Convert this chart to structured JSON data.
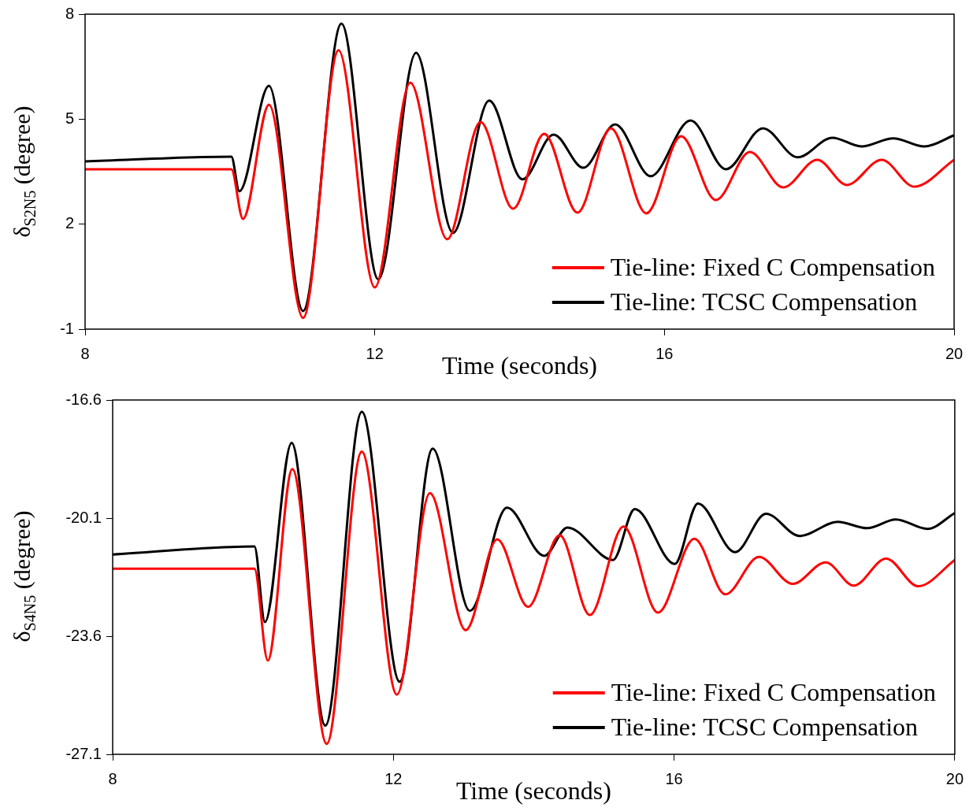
{
  "chart_data": [
    {
      "type": "line",
      "xlabel": "Time (seconds)",
      "ylabel": "δ$_{S2N5}$ (degree)",
      "xlim": [
        8,
        20
      ],
      "xticks": [
        8,
        12,
        16,
        20
      ],
      "ylim": [
        -1,
        8
      ],
      "yticks": [
        -1,
        2,
        5,
        8
      ],
      "legend": "bottom right",
      "series": [
        {
          "name": "Tie-line: Fixed C Compensation",
          "color": "#ff0000",
          "x": [
            8,
            10.02,
            10.18,
            10.54,
            11.01,
            11.5,
            12.0,
            12.49,
            13.0,
            13.46,
            13.91,
            14.34,
            14.8,
            15.26,
            15.75,
            16.23,
            16.71,
            17.18,
            17.64,
            18.11,
            18.52,
            19.0,
            19.45,
            20
          ],
          "values": [
            3.57,
            3.57,
            2.15,
            5.41,
            -0.68,
            6.97,
            0.19,
            6.04,
            1.57,
            4.92,
            2.44,
            4.58,
            2.33,
            4.74,
            2.31,
            4.51,
            2.69,
            4.06,
            3.05,
            3.84,
            3.12,
            3.84,
            3.07,
            3.84
          ]
        },
        {
          "name": "Tie-line: TCSC Compensation",
          "color": "#000000",
          "x": [
            8,
            10.02,
            10.13,
            10.54,
            11.01,
            11.54,
            12.05,
            12.57,
            13.08,
            13.58,
            14.04,
            14.47,
            14.88,
            15.32,
            15.81,
            16.36,
            16.85,
            17.36,
            17.84,
            18.32,
            18.72,
            19.16,
            19.59,
            20
          ],
          "values": [
            3.79,
            3.93,
            2.94,
            5.95,
            -0.48,
            7.73,
            0.42,
            6.9,
            1.75,
            5.53,
            3.28,
            4.56,
            3.61,
            4.85,
            3.37,
            4.96,
            3.57,
            4.74,
            3.91,
            4.47,
            4.22,
            4.45,
            4.22,
            4.54
          ]
        }
      ]
    },
    {
      "type": "line",
      "xlabel": "Time (seconds)",
      "ylabel": "δ$_{S4N5}$ (degree)",
      "xlim": [
        8,
        20
      ],
      "xticks": [
        8,
        12,
        16,
        20
      ],
      "ylim": [
        -27.1,
        -16.6
      ],
      "yticks": [
        -27.1,
        -23.6,
        -20.1,
        -16.6
      ],
      "legend": "bottom right",
      "series": [
        {
          "name": "Tie-line: Fixed C Compensation",
          "color": "#ff0000",
          "x": [
            8,
            10.02,
            10.21,
            10.56,
            11.05,
            11.55,
            12.05,
            12.52,
            13.03,
            13.48,
            13.92,
            14.37,
            14.8,
            15.28,
            15.77,
            16.29,
            16.73,
            17.21,
            17.69,
            18.16,
            18.56,
            19.02,
            19.48,
            20
          ],
          "values": [
            -21.6,
            -21.6,
            -24.32,
            -18.65,
            -26.79,
            -18.13,
            -25.33,
            -19.36,
            -23.42,
            -20.73,
            -22.73,
            -20.61,
            -22.97,
            -20.35,
            -22.9,
            -20.71,
            -22.36,
            -21.25,
            -22.05,
            -21.41,
            -22.1,
            -21.3,
            -22.12,
            -21.34
          ]
        },
        {
          "name": "Tie-line: TCSC Compensation",
          "color": "#000000",
          "x": [
            8,
            10.02,
            10.17,
            10.55,
            11.03,
            11.55,
            12.09,
            12.56,
            13.09,
            13.62,
            14.15,
            14.48,
            15.13,
            15.44,
            16.01,
            16.34,
            16.87,
            17.31,
            17.79,
            18.33,
            18.75,
            19.16,
            19.61,
            20
          ],
          "values": [
            -21.18,
            -20.94,
            -23.18,
            -17.87,
            -26.25,
            -16.95,
            -24.95,
            -18.04,
            -22.85,
            -19.79,
            -21.22,
            -20.38,
            -21.34,
            -19.83,
            -21.46,
            -19.67,
            -21.11,
            -19.97,
            -20.63,
            -20.21,
            -20.4,
            -20.14,
            -20.42,
            -19.95
          ]
        }
      ]
    }
  ]
}
